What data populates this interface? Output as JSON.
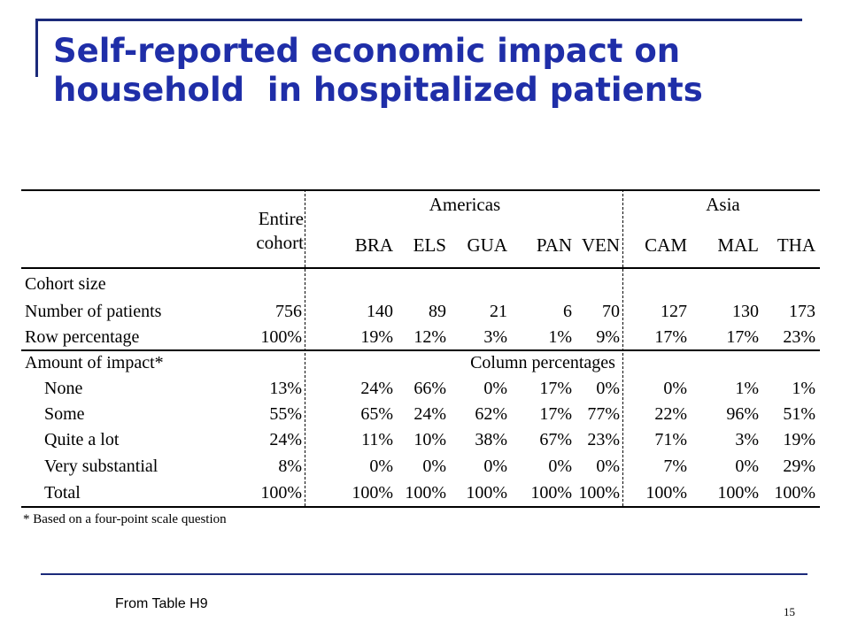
{
  "title": {
    "line1": "Self-reported economic impact on",
    "line2": "household  in hospitalized patients"
  },
  "table": {
    "group_headers": {
      "americas": "Americas",
      "asia": "Asia"
    },
    "entire_header": {
      "line1": "Entire",
      "line2": "cohort"
    },
    "countries": [
      "BRA",
      "ELS",
      "GUA",
      "PAN",
      "VEN",
      "CAM",
      "MAL",
      "THA"
    ],
    "section1": {
      "label": "Cohort size",
      "rows": [
        {
          "label": "Number of patients",
          "values": [
            "756",
            "140",
            "89",
            "21",
            "6",
            "70",
            "127",
            "130",
            "173"
          ]
        },
        {
          "label": "Row percentage",
          "values": [
            "100%",
            "19%",
            "12%",
            "3%",
            "1%",
            "9%",
            "17%",
            "17%",
            "23%"
          ]
        }
      ]
    },
    "section2": {
      "label": "Amount of impact*",
      "subheader": "Column percentages",
      "rows": [
        {
          "label": "None",
          "values": [
            "13%",
            "24%",
            "66%",
            "0%",
            "17%",
            "0%",
            "0%",
            "1%",
            "1%"
          ]
        },
        {
          "label": "Some",
          "values": [
            "55%",
            "65%",
            "24%",
            "62%",
            "17%",
            "77%",
            "22%",
            "96%",
            "51%"
          ]
        },
        {
          "label": "Quite a lot",
          "values": [
            "24%",
            "11%",
            "10%",
            "38%",
            "67%",
            "23%",
            "71%",
            "3%",
            "19%"
          ]
        },
        {
          "label": "Very substantial",
          "values": [
            "8%",
            "0%",
            "0%",
            "0%",
            "0%",
            "0%",
            "7%",
            "0%",
            "29%"
          ]
        },
        {
          "label": "Total",
          "values": [
            "100%",
            "100%",
            "100%",
            "100%",
            "100%",
            "100%",
            "100%",
            "100%",
            "100%"
          ]
        }
      ]
    },
    "footnote": "* Based on a four-point scale question"
  },
  "source": "From Table H9",
  "page_number": "15",
  "colors": {
    "title": "#1f2ea8",
    "rule": "#1b2a7a"
  }
}
